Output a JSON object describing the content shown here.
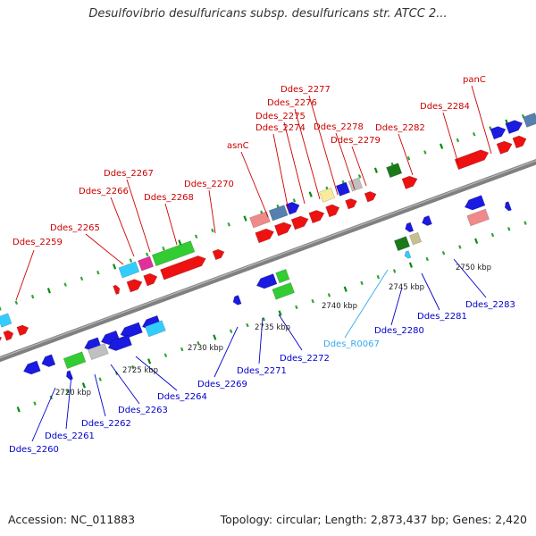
{
  "title": "Desulfovibrio desulfuricans subsp. desulfuricans str. ATCC 2...",
  "footer": {
    "accession": "Accession: NC_011883",
    "topology": "Topology: circular; Length: 2,873,437 bp; Genes: 2,420"
  },
  "colors": {
    "red": "#ee1111",
    "blue": "#1a1ae0",
    "cyan": "#33ccff",
    "green": "#33cc33",
    "dark_green": "#1a7a1a",
    "steelblue": "#5580b0",
    "salmon": "#f08a8a",
    "gray": "#c0c0c0",
    "pink": "#e0309a",
    "khaki": "#c8c090",
    "lightyellow": "#f8ec9c",
    "backbone": "#808080",
    "forward_label": "#cc0000",
    "reverse_label": "#0000cc",
    "rna_label": "#33aaee"
  },
  "scale_labels": [
    "2720 kbp",
    "2725 kbp",
    "2730 kbp",
    "2735 kbp",
    "2740 kbp",
    "2745 kbp",
    "2750 kbp"
  ],
  "forward_labels": [
    "Ddes_2259",
    "Ddes_2265",
    "Ddes_2266",
    "Ddes_2267",
    "Ddes_2268",
    "Ddes_2270",
    "asnC",
    "Ddes_2274",
    "Ddes_2275",
    "Ddes_2276",
    "Ddes_2277",
    "Ddes_2278",
    "Ddes_2279",
    "Ddes_2282",
    "Ddes_2284",
    "panC"
  ],
  "reverse_labels": [
    "Ddes_2260",
    "Ddes_2261",
    "Ddes_2262",
    "Ddes_2263",
    "Ddes_2264",
    "Ddes_2269",
    "Ddes_2271",
    "Ddes_2272",
    "Ddes_R0067",
    "Ddes_2280",
    "Ddes_2281",
    "Ddes_2283"
  ]
}
